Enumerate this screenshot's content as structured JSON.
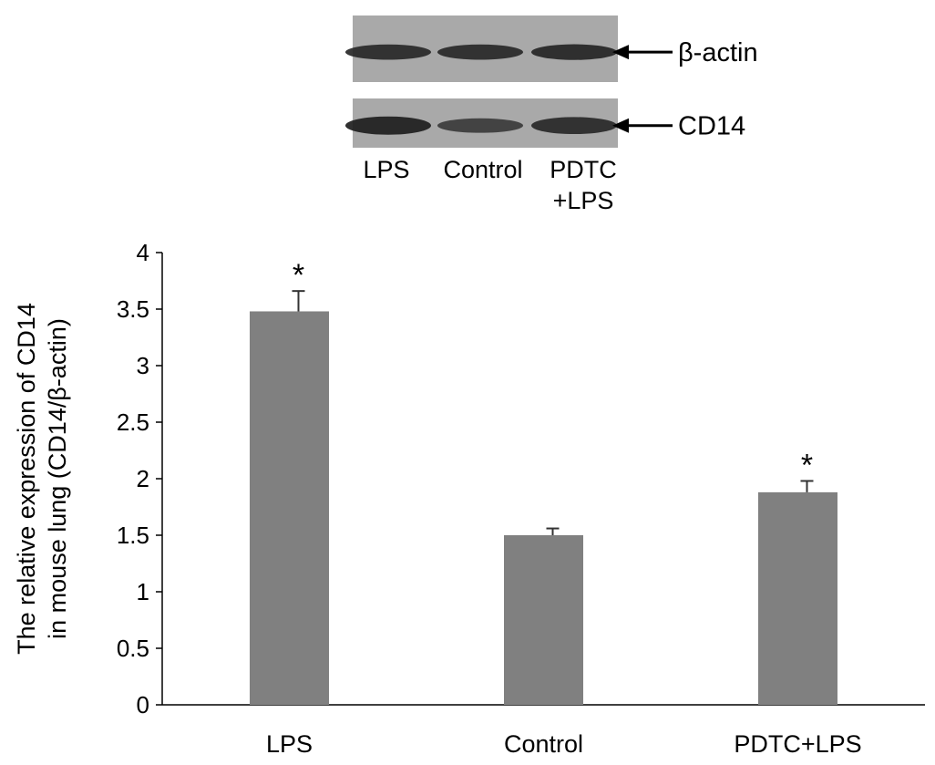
{
  "blot": {
    "lanes": [
      "LPS",
      "Control",
      "PDTC+LPS"
    ],
    "lane_label_lines": [
      [
        "LPS"
      ],
      [
        "Control"
      ],
      [
        "PDTC",
        "+LPS"
      ]
    ],
    "markers": [
      {
        "label": "β-actin",
        "band_intensity": [
          0.85,
          0.85,
          0.9
        ]
      },
      {
        "label": "CD14",
        "band_intensity": [
          1.0,
          0.55,
          0.85
        ]
      }
    ]
  },
  "chart_data": {
    "type": "bar",
    "title": "",
    "xlabel": "",
    "ylabel_lines": [
      "The relative expression of CD14",
      "in mouse lung (CD14/β-actin)"
    ],
    "categories": [
      "LPS",
      "Control",
      "PDTC+LPS"
    ],
    "values": [
      3.48,
      1.5,
      1.88
    ],
    "error": [
      0.18,
      0.06,
      0.1
    ],
    "significance": [
      "*",
      "",
      "*"
    ],
    "ylim": [
      0,
      4
    ],
    "yticks": [
      0,
      0.5,
      1,
      1.5,
      2,
      2.5,
      3,
      3.5,
      4
    ],
    "ytick_labels": [
      "0",
      "0.5",
      "1",
      "1.5",
      "2",
      "2.5",
      "3",
      "3.5",
      "4"
    ],
    "bar_color": "#808080",
    "grid": false,
    "legend": "none"
  }
}
